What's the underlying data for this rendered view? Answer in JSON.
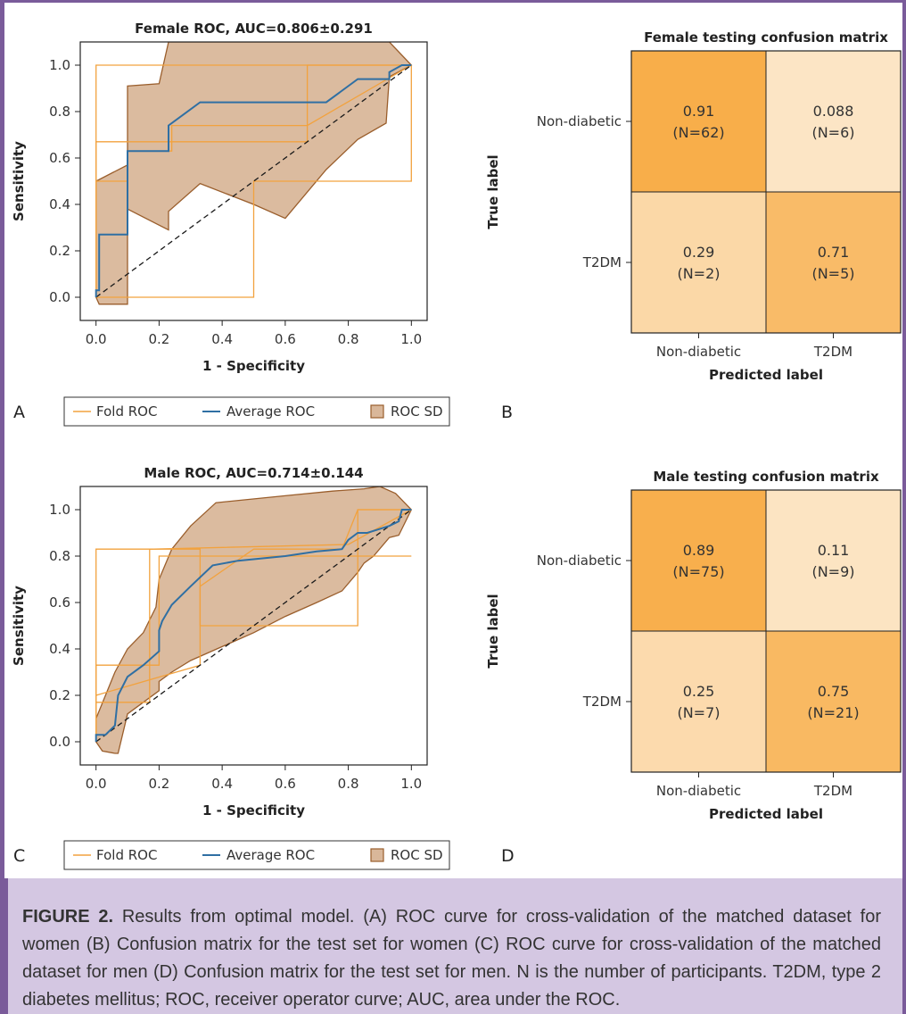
{
  "chart_data": [
    {
      "type": "line",
      "panel": "A",
      "title": "Female ROC, AUC=0.806±0.291",
      "xlabel": "1 - Specificity",
      "ylabel": "Sensitivity",
      "xlim": [
        -0.05,
        1.05
      ],
      "ylim": [
        -0.1,
        1.1
      ],
      "xticks": [
        0.0,
        0.2,
        0.4,
        0.6,
        0.8,
        1.0
      ],
      "yticks": [
        0.0,
        0.2,
        0.4,
        0.6,
        0.8,
        1.0
      ],
      "tick_labels": [
        "0.0",
        "0.2",
        "0.4",
        "0.6",
        "0.8",
        "1.0"
      ],
      "legend": [
        "Fold ROC",
        "Average ROC",
        "ROC SD"
      ],
      "legend_position": "bottom",
      "series": [
        {
          "name": "Fold ROC",
          "kind": "fold",
          "x": [
            0,
            0,
            0.5,
            0.5,
            1,
            1
          ],
          "y": [
            0,
            0,
            0,
            0.5,
            0.5,
            1
          ]
        },
        {
          "name": "Fold ROC",
          "kind": "fold",
          "x": [
            0,
            0,
            0.67,
            0.67,
            1
          ],
          "y": [
            0,
            0.67,
            0.67,
            1,
            1
          ]
        },
        {
          "name": "Fold ROC",
          "kind": "fold",
          "x": [
            0,
            0,
            1
          ],
          "y": [
            0,
            1,
            1
          ]
        },
        {
          "name": "Fold ROC",
          "kind": "fold",
          "x": [
            0,
            0,
            0.1,
            0.1,
            0.24,
            0.24,
            0.67,
            1
          ],
          "y": [
            0,
            0.5,
            0.5,
            0.63,
            0.63,
            0.74,
            0.74,
            1
          ]
        },
        {
          "name": "Average ROC",
          "kind": "mean",
          "x": [
            0,
            0,
            0.01,
            0.01,
            0.1,
            0.1,
            0.23,
            0.23,
            0.33,
            0.73,
            0.83,
            0.93,
            0.93,
            0.97,
            1
          ],
          "y": [
            0,
            0.03,
            0.03,
            0.27,
            0.27,
            0.63,
            0.63,
            0.74,
            0.84,
            0.84,
            0.94,
            0.94,
            0.97,
            1,
            1
          ]
        },
        {
          "name": "ROC SD",
          "kind": "band",
          "upper_x": [
            0,
            0.1,
            0.1,
            0.2,
            0.23,
            0.23,
            0.3,
            0.33,
            0.93,
            1
          ],
          "upper_y": [
            0.5,
            0.57,
            0.91,
            0.92,
            1.1,
            1.1,
            1.1,
            1.1,
            1.1,
            1.0
          ],
          "lower_x": [
            1,
            0.93,
            0.92,
            0.83,
            0.73,
            0.6,
            0.5,
            0.33,
            0.23,
            0.23,
            0.1,
            0.1,
            0.01,
            0
          ],
          "lower_y": [
            1.0,
            0.95,
            0.75,
            0.68,
            0.55,
            0.34,
            0.4,
            0.49,
            0.37,
            0.29,
            0.38,
            -0.03,
            -0.03,
            0.0
          ]
        },
        {
          "name": "chance",
          "kind": "diag",
          "x": [
            0,
            1
          ],
          "y": [
            0,
            1
          ]
        }
      ]
    },
    {
      "type": "heatmap",
      "panel": "B",
      "title": "Female testing confusion matrix",
      "xlabel": "Predicted label",
      "ylabel": "True label",
      "x_categories": [
        "Non-diabetic",
        "T2DM"
      ],
      "y_categories": [
        "Non-diabetic",
        "T2DM"
      ],
      "values": [
        [
          0.91,
          0.088
        ],
        [
          0.29,
          0.71
        ]
      ],
      "value_labels": [
        [
          "0.91",
          "0.088"
        ],
        [
          "0.29",
          "0.71"
        ]
      ],
      "counts": [
        [
          "(N=62)",
          "(N=6)"
        ],
        [
          "(N=2)",
          "(N=5)"
        ]
      ]
    },
    {
      "type": "line",
      "panel": "C",
      "title": "Male ROC, AUC=0.714±0.144",
      "xlabel": "1 - Specificity",
      "ylabel": "Sensitivity",
      "xlim": [
        -0.05,
        1.05
      ],
      "ylim": [
        -0.1,
        1.1
      ],
      "xticks": [
        0.0,
        0.2,
        0.4,
        0.6,
        0.8,
        1.0
      ],
      "yticks": [
        0.0,
        0.2,
        0.4,
        0.6,
        0.8,
        1.0
      ],
      "tick_labels": [
        "0.0",
        "0.2",
        "0.4",
        "0.6",
        "0.8",
        "1.0"
      ],
      "legend": [
        "Fold ROC",
        "Average ROC",
        "ROC SD"
      ],
      "legend_position": "bottom",
      "series": [
        {
          "name": "Fold ROC",
          "kind": "fold",
          "x": [
            0,
            0,
            0.17,
            0.17,
            0.8,
            1
          ],
          "y": [
            0,
            0.17,
            0.17,
            0.83,
            0.85,
            1
          ]
        },
        {
          "name": "Fold ROC",
          "kind": "fold",
          "x": [
            0,
            0,
            0.17,
            0.17,
            0.2,
            0.2,
            1
          ],
          "y": [
            0,
            0.33,
            0.33,
            0.33,
            0.33,
            0.8,
            0.8
          ]
        },
        {
          "name": "Fold ROC",
          "kind": "fold",
          "x": [
            0,
            0,
            0.33,
            0.33,
            0.83,
            0.83,
            1
          ],
          "y": [
            0,
            0.83,
            0.83,
            0.5,
            0.5,
            1,
            1
          ]
        },
        {
          "name": "Fold ROC",
          "kind": "fold",
          "x": [
            0,
            0.33,
            0.33,
            0.5,
            0.78,
            0.83,
            1
          ],
          "y": [
            0.2,
            0.33,
            0.67,
            0.83,
            0.83,
            1,
            1
          ]
        },
        {
          "name": "Average ROC",
          "kind": "mean",
          "x": [
            0,
            0,
            0.03,
            0.03,
            0.06,
            0.07,
            0.1,
            0.15,
            0.2,
            0.2,
            0.21,
            0.24,
            0.3,
            0.37,
            0.45,
            0.6,
            0.7,
            0.78,
            0.8,
            0.83,
            0.86,
            0.93,
            0.96,
            0.97,
            1
          ],
          "y": [
            0,
            0.03,
            0.03,
            0.03,
            0.07,
            0.2,
            0.28,
            0.33,
            0.39,
            0.48,
            0.52,
            0.59,
            0.67,
            0.76,
            0.78,
            0.8,
            0.82,
            0.83,
            0.87,
            0.9,
            0.9,
            0.93,
            0.95,
            1,
            1
          ]
        },
        {
          "name": "ROC SD",
          "kind": "band",
          "upper_x": [
            0,
            0.06,
            0.1,
            0.15,
            0.19,
            0.2,
            0.24,
            0.3,
            0.38,
            0.6,
            0.75,
            0.85,
            0.9,
            0.95,
            1
          ],
          "upper_y": [
            0.1,
            0.3,
            0.4,
            0.47,
            0.58,
            0.7,
            0.83,
            0.93,
            1.03,
            1.06,
            1.08,
            1.09,
            1.1,
            1.07,
            1.0
          ],
          "lower_x": [
            1,
            0.96,
            0.93,
            0.88,
            0.85,
            0.83,
            0.78,
            0.7,
            0.6,
            0.5,
            0.4,
            0.3,
            0.24,
            0.2,
            0.2,
            0.15,
            0.1,
            0.07,
            0.06,
            0.02,
            0
          ],
          "lower_y": [
            1.0,
            0.89,
            0.88,
            0.8,
            0.77,
            0.73,
            0.65,
            0.6,
            0.54,
            0.47,
            0.41,
            0.35,
            0.3,
            0.26,
            0.22,
            0.17,
            0.12,
            -0.05,
            -0.05,
            -0.04,
            0.0
          ]
        },
        {
          "name": "chance",
          "kind": "diag",
          "x": [
            0,
            1
          ],
          "y": [
            0,
            1
          ]
        }
      ]
    },
    {
      "type": "heatmap",
      "panel": "D",
      "title": "Male testing confusion matrix",
      "xlabel": "Predicted label",
      "ylabel": "True label",
      "x_categories": [
        "Non-diabetic",
        "T2DM"
      ],
      "y_categories": [
        "Non-diabetic",
        "T2DM"
      ],
      "values": [
        [
          0.89,
          0.11
        ],
        [
          0.25,
          0.75
        ]
      ],
      "value_labels": [
        [
          "0.89",
          "0.11"
        ],
        [
          "0.25",
          "0.75"
        ]
      ],
      "counts": [
        [
          "(N=75)",
          "(N=9)"
        ],
        [
          "(N=7)",
          "(N=21)"
        ]
      ]
    }
  ],
  "colors": {
    "fold": "#f2a23e",
    "mean": "#2f6fa3",
    "band_fill": "#d9b79a",
    "band_edge": "#9a5e2c",
    "diag": "#1a1a1a",
    "cell_scale": [
      "#fdebd2",
      "#f7a83d"
    ],
    "frame": "#7a5b9a",
    "caption_bg": "#d4c7e2"
  },
  "panel_letters": [
    "A",
    "B",
    "C",
    "D"
  ],
  "caption": {
    "label": "FIGURE 2.",
    "text": " Results from optimal model. (A) ROC curve for cross-validation of the matched dataset for women (B) Confusion matrix for the test set for women (C) ROC curve for cross-validation of the matched dataset for men (D) Confusion matrix for the test set for men. N is the number of participants. T2DM, type 2 diabetes mellitus; ROC, receiver operator curve; AUC, area under the ROC."
  }
}
